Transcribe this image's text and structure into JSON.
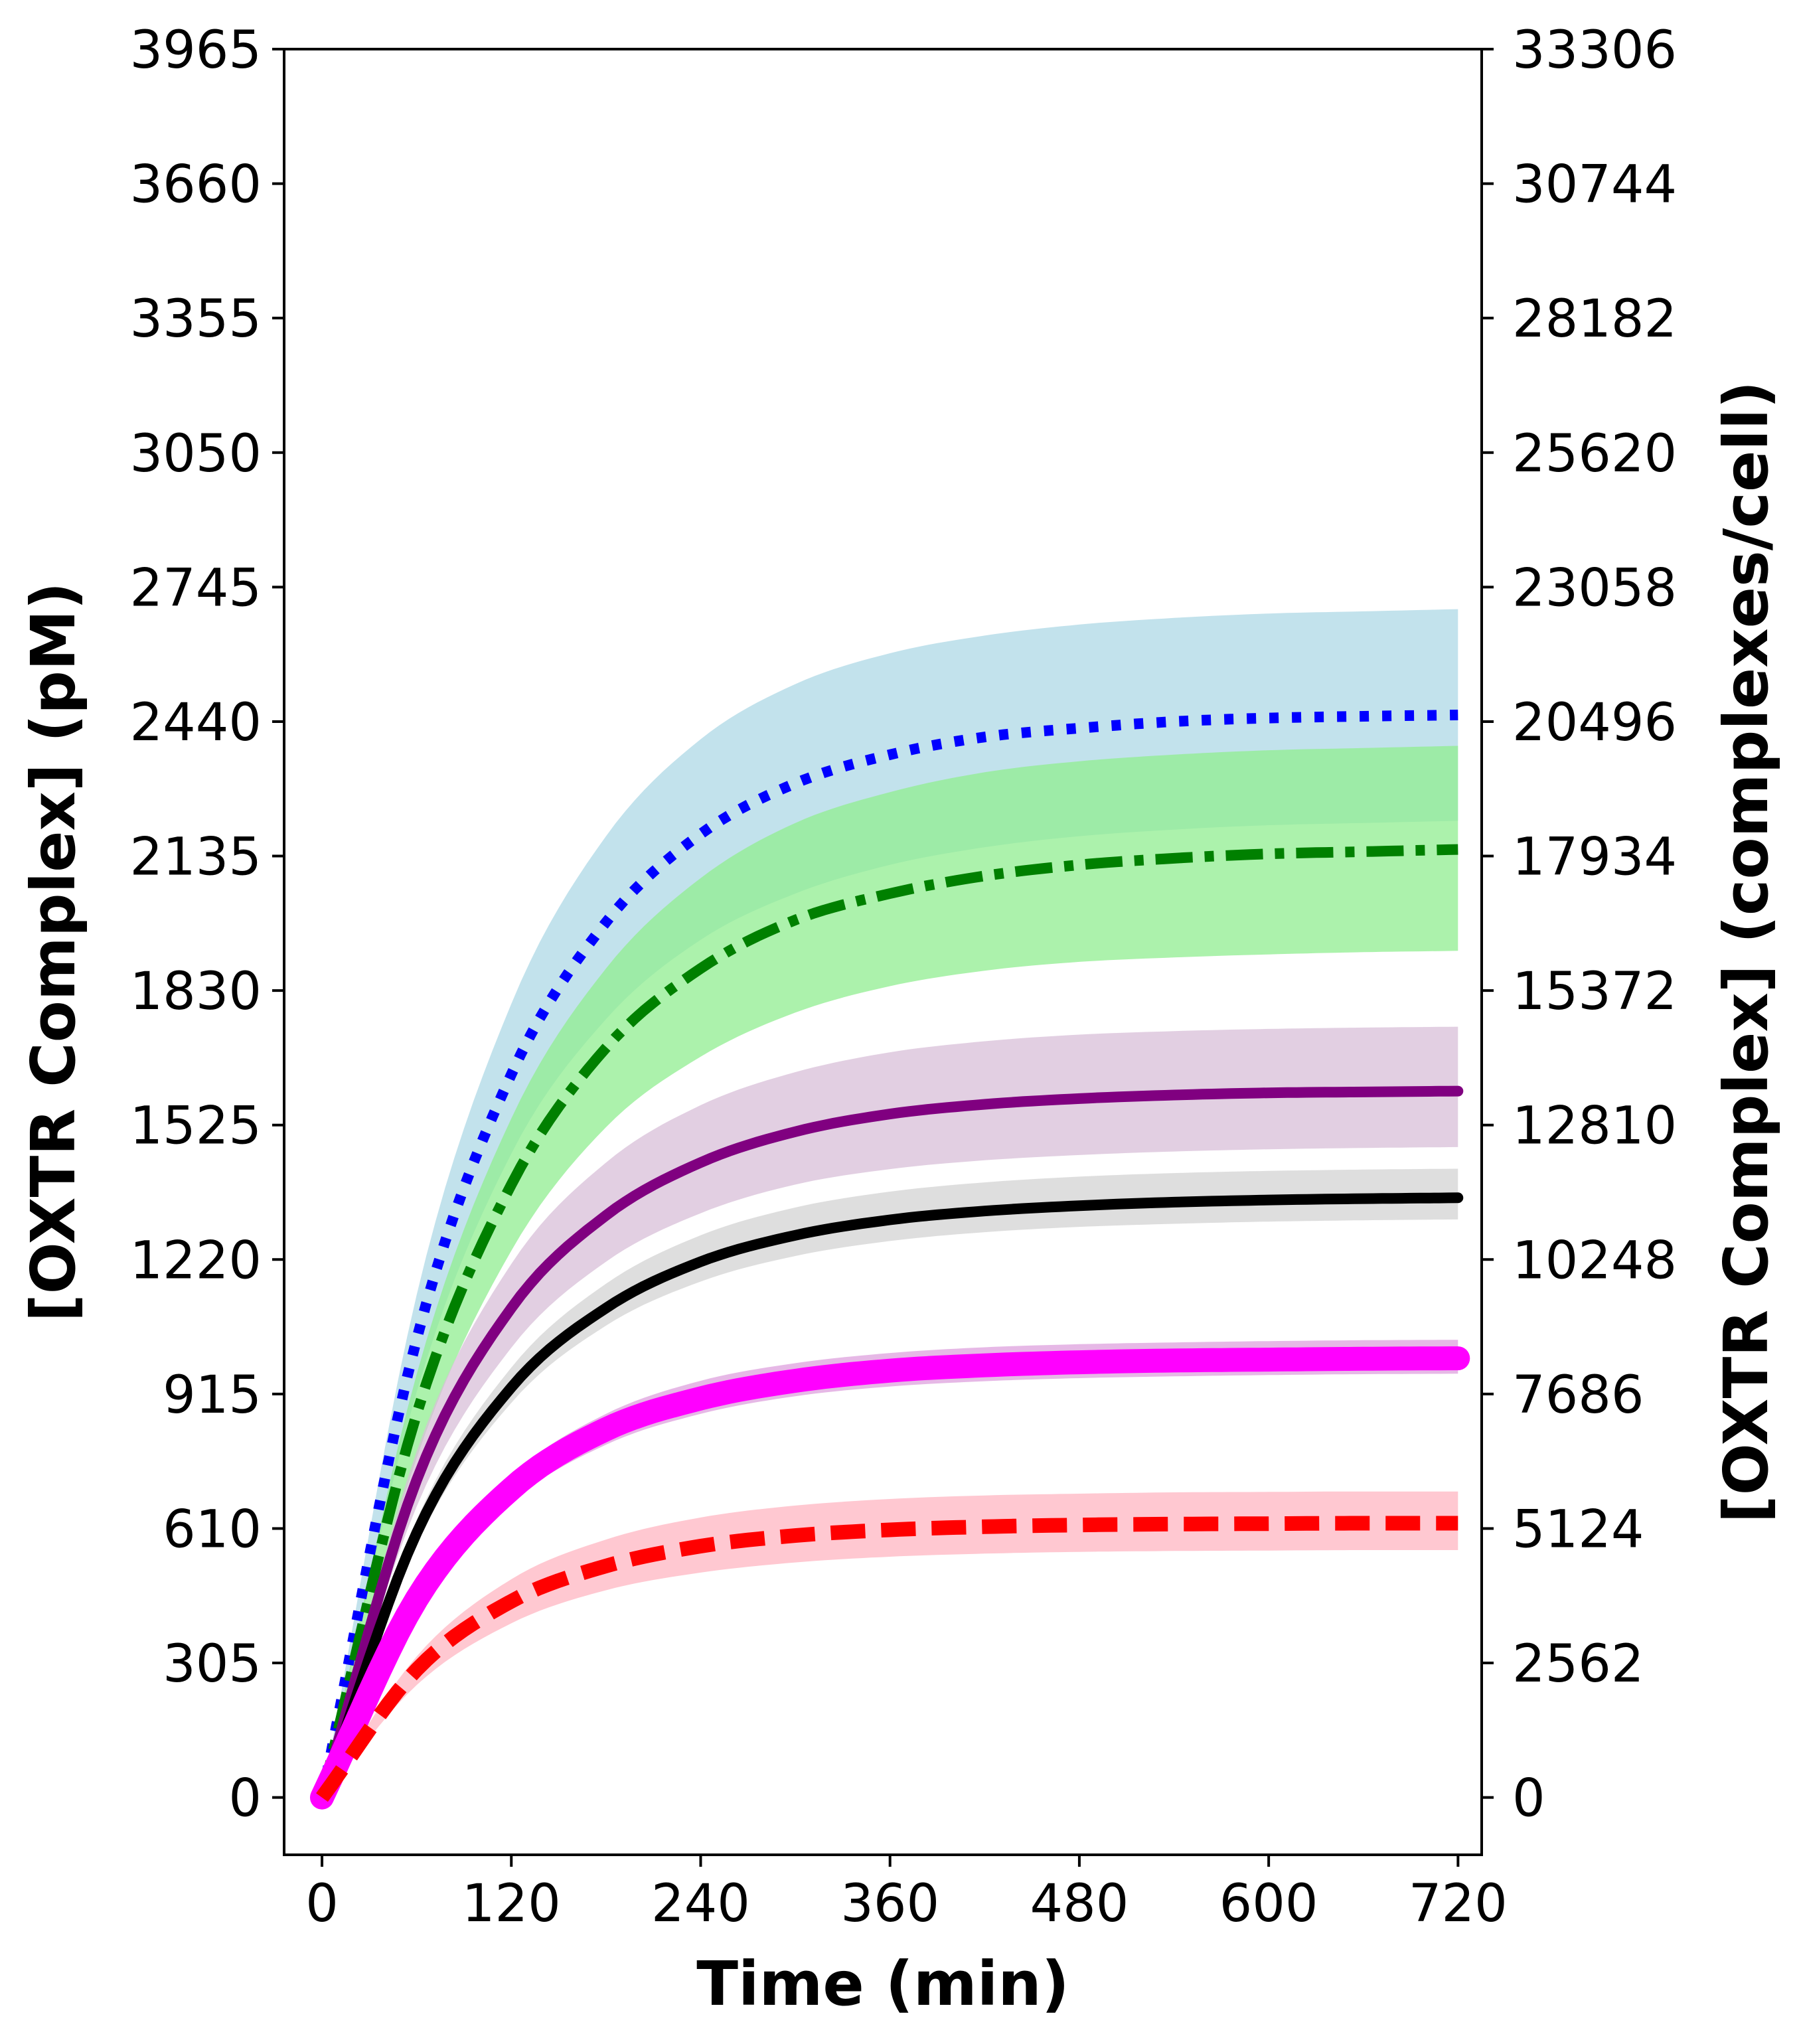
{
  "chart_data": {
    "type": "line",
    "xlabel": "Time (min)",
    "ylabel_left": "[OXTR Complex] (pM)",
    "ylabel_right": "[OXTR Complex] (complexes/cell)",
    "xlim": [
      -24,
      735
    ],
    "ylim": [
      -130,
      3965
    ],
    "x_ticks": [
      0,
      120,
      240,
      360,
      480,
      600,
      720
    ],
    "y_ticks_left": [
      "0",
      "305",
      "610",
      "915",
      "1220",
      "1525",
      "1830",
      "2135",
      "2440",
      "2745",
      "3050",
      "3355",
      "3660",
      "3965"
    ],
    "y_ticks_right": [
      "0",
      "2562",
      "5124",
      "7686",
      "10248",
      "12810",
      "15372",
      "17934",
      "20496",
      "23058",
      "25620",
      "28182",
      "30744",
      "33306"
    ],
    "grid": false,
    "series": [
      {
        "color": "#0000ff",
        "style": "dotted",
        "band_color": "#add8e6",
        "x": [
          0,
          60,
          120,
          180,
          240,
          300,
          360,
          420,
          480,
          540,
          600,
          660,
          720
        ],
        "y": [
          0,
          1040,
          1640,
          1985,
          2185,
          2300,
          2365,
          2405,
          2425,
          2440,
          2448,
          2452,
          2455
        ],
        "band_low": [
          0,
          920,
          1460,
          1765,
          1945,
          2050,
          2115,
          2155,
          2180,
          2195,
          2205,
          2210,
          2215
        ],
        "band_high": [
          0,
          1140,
          1800,
          2180,
          2400,
          2525,
          2595,
          2635,
          2660,
          2675,
          2685,
          2690,
          2695
        ]
      },
      {
        "color": "#008000",
        "style": "dashdot",
        "band_color": "#90ee90",
        "x": [
          0,
          60,
          120,
          180,
          240,
          300,
          360,
          420,
          480,
          540,
          600,
          660,
          720
        ],
        "y": [
          0,
          870,
          1390,
          1700,
          1880,
          1990,
          2050,
          2090,
          2115,
          2130,
          2140,
          2145,
          2150
        ],
        "band_low": [
          0,
          770,
          1240,
          1520,
          1680,
          1780,
          1840,
          1875,
          1895,
          1905,
          1912,
          1917,
          1920
        ],
        "band_high": [
          0,
          960,
          1540,
          1880,
          2085,
          2210,
          2280,
          2325,
          2350,
          2365,
          2375,
          2380,
          2385
        ]
      },
      {
        "color": "#800080",
        "style": "solid",
        "band_color": "#d8bfd8",
        "x": [
          0,
          60,
          120,
          180,
          240,
          300,
          360,
          420,
          480,
          540,
          600,
          660,
          720
        ],
        "y": [
          0,
          720,
          1110,
          1320,
          1440,
          1510,
          1550,
          1572,
          1585,
          1593,
          1598,
          1600,
          1602
        ],
        "band_low": [
          0,
          660,
          1020,
          1215,
          1325,
          1390,
          1425,
          1445,
          1457,
          1465,
          1470,
          1473,
          1475
        ],
        "band_high": [
          0,
          785,
          1210,
          1440,
          1570,
          1645,
          1690,
          1715,
          1730,
          1738,
          1743,
          1746,
          1748
        ]
      },
      {
        "color": "#000000",
        "style": "solid",
        "band_color": "#d3d3d3",
        "x": [
          0,
          60,
          120,
          180,
          240,
          300,
          360,
          420,
          480,
          540,
          600,
          660,
          720
        ],
        "y": [
          0,
          600,
          930,
          1110,
          1215,
          1275,
          1310,
          1330,
          1342,
          1350,
          1355,
          1358,
          1360
        ],
        "band_low": [
          0,
          575,
          895,
          1070,
          1170,
          1228,
          1262,
          1282,
          1294,
          1301,
          1306,
          1309,
          1311
        ],
        "band_high": [
          0,
          630,
          975,
          1165,
          1275,
          1338,
          1374,
          1395,
          1408,
          1416,
          1421,
          1424,
          1426
        ]
      },
      {
        "color": "#ff00ff",
        "style": "solid-thick",
        "band_color": "#dda0dd",
        "x": [
          0,
          60,
          120,
          180,
          240,
          300,
          360,
          420,
          480,
          540,
          600,
          660,
          720
        ],
        "y": [
          0,
          450,
          700,
          835,
          905,
          945,
          968,
          980,
          987,
          991,
          993,
          995,
          996
        ],
        "band_low": [
          0,
          430,
          670,
          800,
          870,
          910,
          932,
          944,
          951,
          955,
          958,
          960,
          961
        ],
        "band_high": [
          0,
          470,
          730,
          870,
          945,
          985,
          1008,
          1021,
          1028,
          1032,
          1035,
          1037,
          1038
        ]
      },
      {
        "color": "#ff0000",
        "style": "dashed",
        "band_color": "#ffb6c1",
        "x": [
          0,
          60,
          120,
          180,
          240,
          300,
          360,
          420,
          480,
          540,
          600,
          660,
          720
        ],
        "y": [
          0,
          290,
          445,
          525,
          570,
          594,
          607,
          614,
          618,
          620,
          621,
          622,
          622
        ],
        "band_low": [
          0,
          255,
          395,
          470,
          510,
          533,
          546,
          553,
          557,
          559,
          560,
          561,
          561
        ],
        "band_high": [
          0,
          320,
          495,
          585,
          635,
          662,
          677,
          685,
          689,
          692,
          693,
          694,
          694
        ]
      }
    ]
  }
}
